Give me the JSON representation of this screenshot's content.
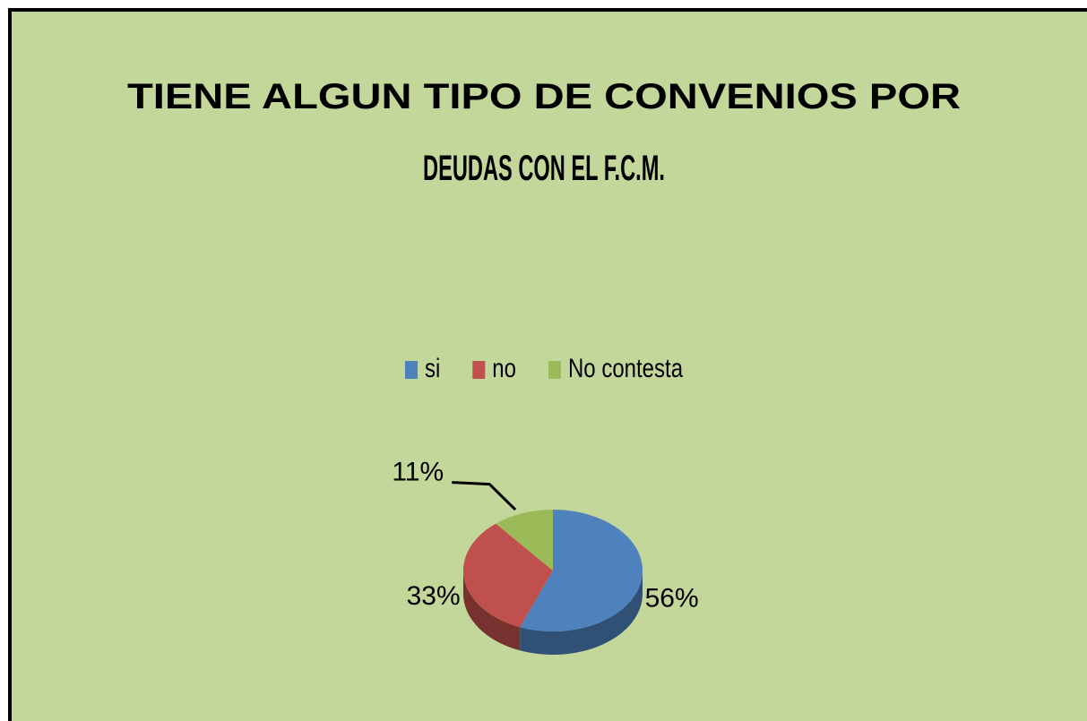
{
  "chart_data": {
    "type": "pie",
    "title": "TIENE ALGUN TIPO DE CONVENIOS POR DEUDAS CON EL F.C.M.",
    "categories": [
      "si",
      "no",
      "No contesta"
    ],
    "values": [
      56,
      33,
      11
    ],
    "value_labels": [
      "56%",
      "33%",
      "11%"
    ],
    "colors": [
      "#4f81bd",
      "#c0504d",
      "#9bbb59"
    ],
    "legend": "top"
  }
}
